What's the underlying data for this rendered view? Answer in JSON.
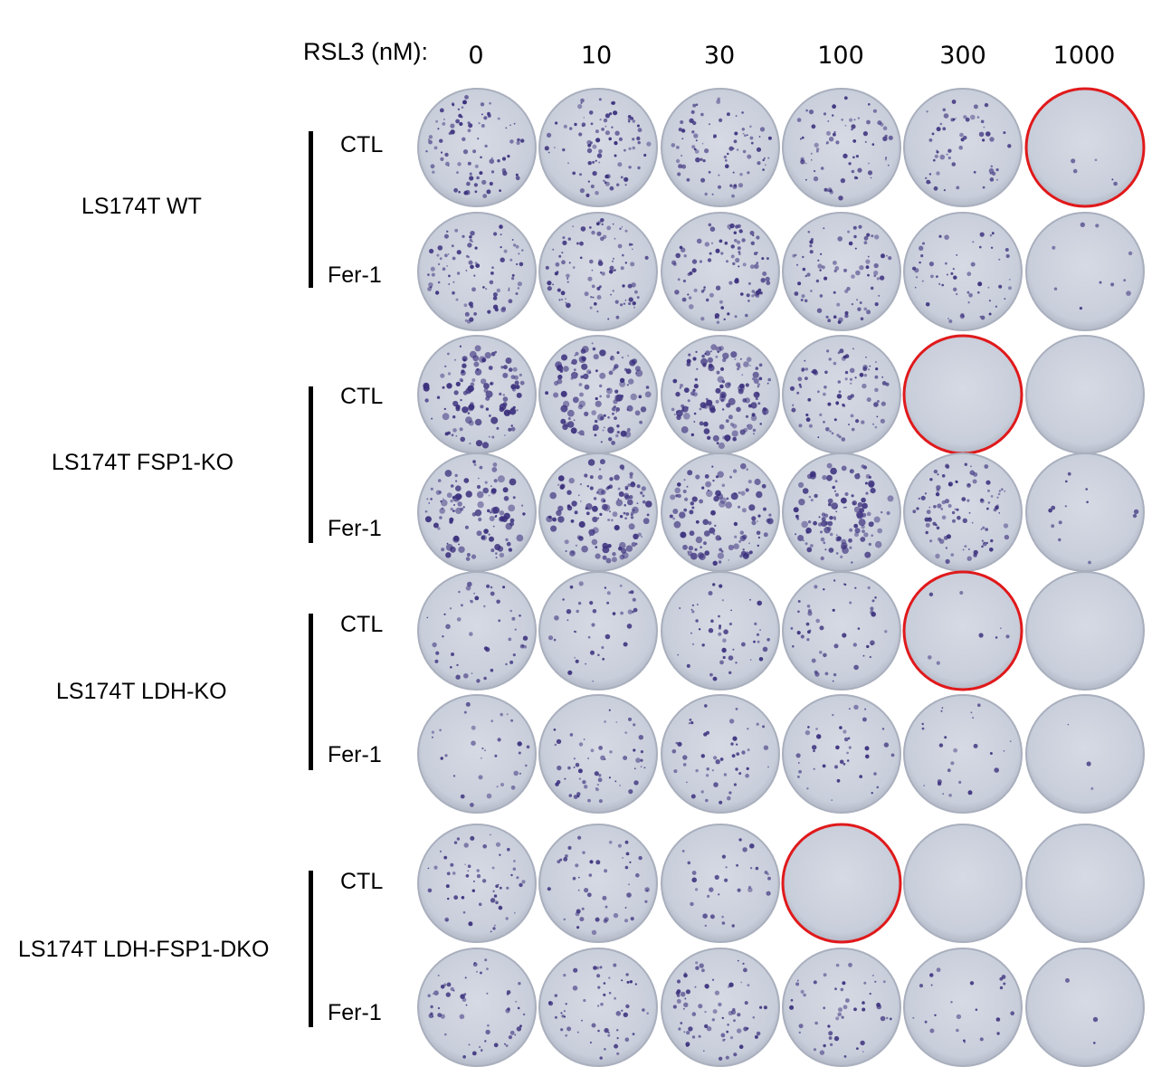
{
  "header": {
    "label": "RSL3 (nM):"
  },
  "doses": [
    "0",
    "10",
    "30",
    "100",
    "300",
    "1000"
  ],
  "groups": [
    {
      "label": "LS174T WT",
      "rows": [
        {
          "treatment": "CTL",
          "density": [
            0.55,
            0.55,
            0.5,
            0.45,
            0.35,
            0.03
          ],
          "highlight": [
            false,
            false,
            false,
            false,
            false,
            true
          ]
        },
        {
          "treatment": "Fer-1",
          "density": [
            0.55,
            0.6,
            0.6,
            0.5,
            0.35,
            0.06
          ],
          "highlight": [
            false,
            false,
            false,
            false,
            false,
            false
          ]
        }
      ]
    },
    {
      "label": "LS174T FSP1-KO",
      "rows": [
        {
          "treatment": "CTL",
          "density": [
            0.7,
            0.8,
            0.85,
            0.55,
            0.0,
            0.0
          ],
          "highlight": [
            false,
            false,
            false,
            false,
            true,
            false
          ]
        },
        {
          "treatment": "Fer-1",
          "density": [
            0.7,
            0.8,
            0.7,
            0.75,
            0.6,
            0.08
          ],
          "highlight": [
            false,
            false,
            false,
            false,
            false,
            false
          ]
        }
      ]
    },
    {
      "label": "LS174T LDH-KO",
      "rows": [
        {
          "treatment": "CTL",
          "density": [
            0.3,
            0.25,
            0.3,
            0.3,
            0.05,
            0.0
          ],
          "highlight": [
            false,
            false,
            false,
            false,
            true,
            false
          ]
        },
        {
          "treatment": "Fer-1",
          "density": [
            0.2,
            0.35,
            0.3,
            0.25,
            0.15,
            0.02
          ],
          "highlight": [
            false,
            false,
            false,
            false,
            false,
            false
          ]
        }
      ]
    },
    {
      "label": "LS174T LDH-FSP1-DKO",
      "rows": [
        {
          "treatment": "CTL",
          "density": [
            0.35,
            0.3,
            0.2,
            0.0,
            0.0,
            0.0
          ],
          "highlight": [
            false,
            false,
            false,
            true,
            false,
            false
          ]
        },
        {
          "treatment": "Fer-1",
          "density": [
            0.35,
            0.35,
            0.45,
            0.3,
            0.15,
            0.02
          ],
          "highlight": [
            false,
            false,
            false,
            false,
            false,
            false
          ]
        }
      ]
    }
  ],
  "colors": {
    "plate": "#cbd0dc",
    "plate_rim": "#a9afbd",
    "colony": "#3a2f7c",
    "highlight": "#e0191b"
  }
}
